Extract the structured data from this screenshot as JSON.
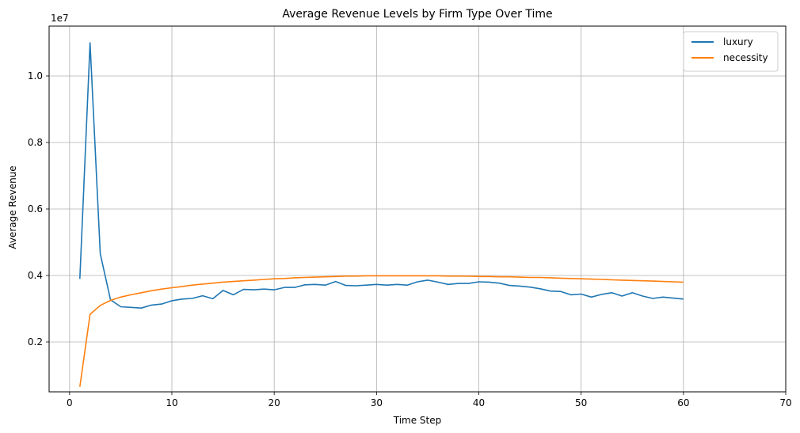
{
  "chart_data": {
    "type": "line",
    "title": "Average Revenue Levels by Firm Type Over Time",
    "xlabel": "Time Step",
    "ylabel": "Average Revenue",
    "y_scale_label": "1e7",
    "xlim": [
      -2,
      70
    ],
    "ylim": [
      0.05,
      1.15
    ],
    "x_ticks": [
      0,
      10,
      20,
      30,
      40,
      50,
      60,
      70
    ],
    "x_tick_labels": [
      "0",
      "10",
      "20",
      "30",
      "40",
      "50",
      "60",
      "70"
    ],
    "y_ticks": [
      0.2,
      0.4,
      0.6,
      0.8,
      1.0
    ],
    "y_tick_labels": [
      "0.2",
      "0.4",
      "0.6",
      "0.8",
      "1.0"
    ],
    "grid": true,
    "legend_position": "top-right",
    "x": [
      1,
      2,
      3,
      4,
      5,
      6,
      7,
      8,
      9,
      10,
      11,
      12,
      13,
      14,
      15,
      16,
      17,
      18,
      19,
      20,
      21,
      22,
      23,
      24,
      25,
      26,
      27,
      28,
      29,
      30,
      31,
      32,
      33,
      34,
      35,
      36,
      37,
      38,
      39,
      40,
      41,
      42,
      43,
      44,
      45,
      46,
      47,
      48,
      49,
      50,
      51,
      52,
      53,
      54,
      55,
      56,
      57,
      58,
      59,
      60
    ],
    "series": [
      {
        "name": "luxury",
        "color": "#1f77b4",
        "values": [
          0.39,
          1.1,
          0.465,
          0.327,
          0.306,
          0.304,
          0.302,
          0.311,
          0.314,
          0.324,
          0.329,
          0.331,
          0.339,
          0.33,
          0.355,
          0.342,
          0.358,
          0.357,
          0.359,
          0.357,
          0.364,
          0.364,
          0.372,
          0.373,
          0.371,
          0.382,
          0.37,
          0.369,
          0.371,
          0.373,
          0.371,
          0.373,
          0.371,
          0.381,
          0.386,
          0.38,
          0.373,
          0.376,
          0.376,
          0.381,
          0.38,
          0.377,
          0.37,
          0.368,
          0.365,
          0.36,
          0.353,
          0.352,
          0.342,
          0.344,
          0.335,
          0.343,
          0.348,
          0.338,
          0.348,
          0.338,
          0.331,
          0.335,
          0.332,
          0.329
        ]
      },
      {
        "name": "necessity",
        "color": "#ff7f0e",
        "values": [
          0.065,
          0.283,
          0.31,
          0.325,
          0.335,
          0.342,
          0.348,
          0.354,
          0.359,
          0.363,
          0.367,
          0.371,
          0.374,
          0.377,
          0.38,
          0.382,
          0.384,
          0.386,
          0.388,
          0.39,
          0.391,
          0.393,
          0.394,
          0.395,
          0.396,
          0.397,
          0.398,
          0.398,
          0.399,
          0.399,
          0.399,
          0.399,
          0.399,
          0.399,
          0.399,
          0.399,
          0.398,
          0.398,
          0.398,
          0.397,
          0.397,
          0.396,
          0.396,
          0.395,
          0.394,
          0.394,
          0.393,
          0.392,
          0.391,
          0.39,
          0.389,
          0.388,
          0.387,
          0.386,
          0.385,
          0.384,
          0.383,
          0.382,
          0.381,
          0.38
        ]
      }
    ]
  }
}
